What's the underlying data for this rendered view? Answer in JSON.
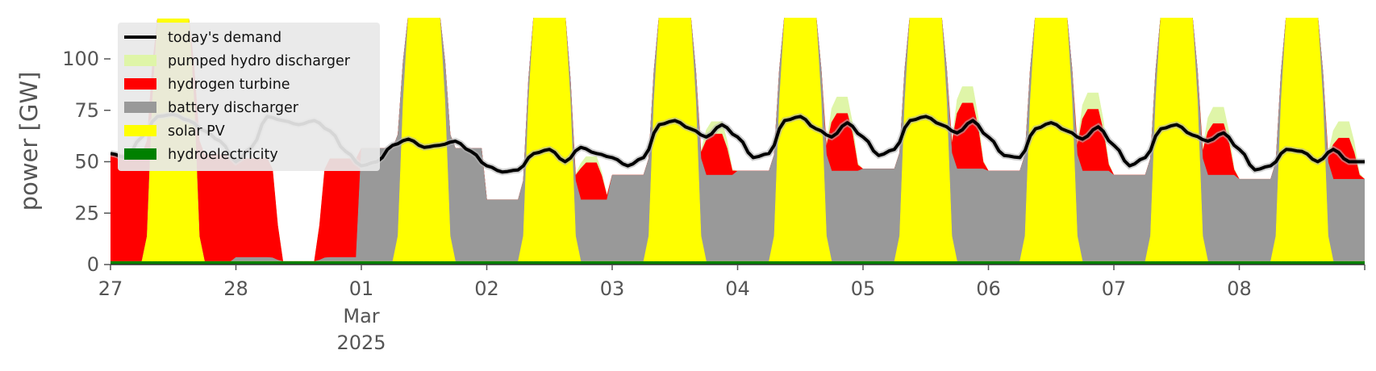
{
  "chart_data": {
    "type": "area",
    "title": "",
    "xlabel": "",
    "ylabel": "power [GW]",
    "ylim": [
      0,
      120
    ],
    "yticks": [
      0,
      25,
      50,
      75,
      100
    ],
    "xlim_days": [
      0,
      10
    ],
    "xticks": [
      {
        "day": 0,
        "label": "27"
      },
      {
        "day": 1,
        "label": "28"
      },
      {
        "day": 2,
        "label": "01",
        "sub1": "Mar",
        "sub2": "2025"
      },
      {
        "day": 3,
        "label": "02"
      },
      {
        "day": 4,
        "label": "03"
      },
      {
        "day": 5,
        "label": "04"
      },
      {
        "day": 6,
        "label": "05"
      },
      {
        "day": 7,
        "label": "06"
      },
      {
        "day": 8,
        "label": "07"
      },
      {
        "day": 9,
        "label": "08"
      }
    ],
    "legend_position": "upper-left",
    "stack_order": [
      "hydroelectricity",
      "solar PV",
      "battery discharger",
      "hydrogen turbine",
      "pumped hydro discharger"
    ],
    "series": [
      {
        "name": "today's demand",
        "color": "#000000",
        "kind": "line"
      },
      {
        "name": "pumped hydro discharger",
        "color": "#dff5a8",
        "kind": "area"
      },
      {
        "name": "hydrogen turbine",
        "color": "#ff0000",
        "kind": "area"
      },
      {
        "name": "battery discharger",
        "color": "#999999",
        "kind": "area"
      },
      {
        "name": "solar PV",
        "color": "#ffff00",
        "kind": "area"
      },
      {
        "name": "hydroelectricity",
        "color": "#008000",
        "kind": "area"
      }
    ],
    "days": [
      {
        "start": "Feb 27",
        "hydro": 1.5,
        "solar": 118,
        "battery": 0,
        "h2": 52,
        "pumped": 0,
        "demand": [
          54,
          52,
          62,
          72,
          73,
          70,
          65,
          60
        ]
      },
      {
        "start": "Feb 28",
        "hydro": 1.5,
        "solar": 0,
        "battery": 2,
        "h2": 48,
        "pumped": 0,
        "demand": [
          50,
          57,
          72,
          70,
          68,
          70,
          65,
          55
        ]
      },
      {
        "start": "Mar 01",
        "hydro": 1.5,
        "solar": 120,
        "battery": 55,
        "h2": 0,
        "pumped": 0,
        "demand": [
          48,
          50,
          58,
          61,
          57,
          58,
          60,
          55
        ]
      },
      {
        "start": "Mar 02",
        "hydro": 1.5,
        "solar": 120,
        "battery": 30,
        "h2": 18,
        "pumped": 3,
        "demand": [
          48,
          45,
          46,
          54,
          56,
          50,
          57,
          54
        ]
      },
      {
        "start": "Mar 03",
        "hydro": 1.5,
        "solar": 120,
        "battery": 42,
        "h2": 20,
        "pumped": 6,
        "demand": [
          52,
          48,
          52,
          68,
          70,
          66,
          62,
          68
        ]
      },
      {
        "start": "Mar 04",
        "hydro": 1.5,
        "solar": 120,
        "battery": 44,
        "h2": 28,
        "pumped": 8,
        "demand": [
          62,
          52,
          54,
          70,
          72,
          66,
          62,
          69
        ]
      },
      {
        "start": "Mar 05",
        "hydro": 1.5,
        "solar": 120,
        "battery": 45,
        "h2": 32,
        "pumped": 8,
        "demand": [
          62,
          53,
          56,
          70,
          72,
          68,
          64,
          70
        ]
      },
      {
        "start": "Mar 06",
        "hydro": 1.5,
        "solar": 120,
        "battery": 44,
        "h2": 30,
        "pumped": 8,
        "demand": [
          62,
          53,
          52,
          66,
          69,
          65,
          61,
          67
        ]
      },
      {
        "start": "Mar 07",
        "hydro": 1.5,
        "solar": 120,
        "battery": 42,
        "h2": 25,
        "pumped": 8,
        "demand": [
          58,
          48,
          52,
          66,
          68,
          63,
          60,
          64
        ]
      },
      {
        "start": "Mar 08",
        "hydro": 1.5,
        "solar": 120,
        "battery": 40,
        "h2": 20,
        "pumped": 8,
        "demand": [
          56,
          46,
          48,
          56,
          55,
          50,
          56,
          50
        ]
      }
    ]
  }
}
